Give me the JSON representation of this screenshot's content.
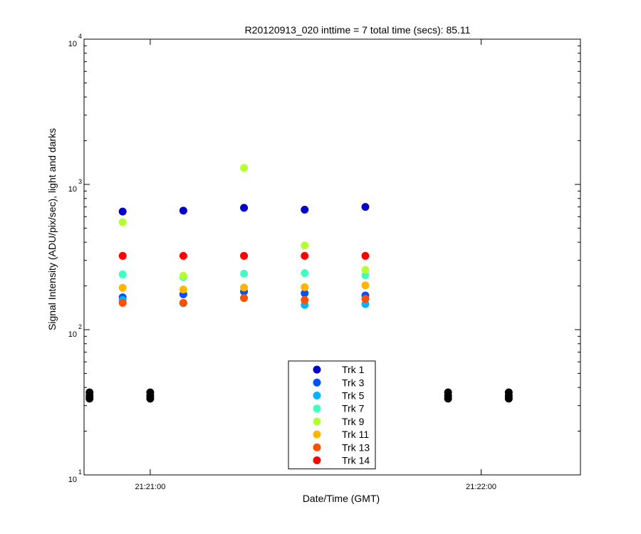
{
  "chart_data": {
    "type": "scatter",
    "title": "R20120913_020 inttime = 7 total time (secs): 85.11",
    "xlabel": "Date/Time (GMT)",
    "ylabel": "Signal Intensity (ADU/pix/sec), light and darks",
    "y_scale": "log",
    "ylim": [
      10,
      10000
    ],
    "y_ticks": [
      {
        "base": "10",
        "exp": "1",
        "value": 10
      },
      {
        "base": "10",
        "exp": "2",
        "value": 100
      },
      {
        "base": "10",
        "exp": "3",
        "value": 1000
      },
      {
        "base": "10",
        "exp": "4",
        "value": 10000
      }
    ],
    "xlim": [
      "21:20:48",
      "21:22:18"
    ],
    "x_ticks": [
      {
        "label": "21:21:00",
        "time": "21:21:00"
      },
      {
        "label": "21:22:00",
        "time": "21:22:00"
      }
    ],
    "legend_position": "bottom-center",
    "series": [
      {
        "name": "Trk 1",
        "color": "#0000c8",
        "x": [
          "21:20:55",
          "21:21:06",
          "21:21:17",
          "21:21:28",
          "21:21:39"
        ],
        "y": [
          650,
          660,
          690,
          670,
          700
        ]
      },
      {
        "name": "Trk 3",
        "color": "#0050ff",
        "x": [
          "21:20:55",
          "21:21:06",
          "21:21:17",
          "21:21:28",
          "21:21:39"
        ],
        "y": [
          167,
          175,
          183,
          178,
          172
        ]
      },
      {
        "name": "Trk 5",
        "color": "#00b4ff",
        "x": [
          "21:20:55",
          "21:21:06",
          "21:21:17",
          "21:21:28",
          "21:21:39"
        ],
        "y": [
          160,
          152,
          165,
          148,
          150
        ]
      },
      {
        "name": "Trk 7",
        "color": "#40ffc0",
        "x": [
          "21:20:55",
          "21:21:06",
          "21:21:17",
          "21:21:28",
          "21:21:39"
        ],
        "y": [
          240,
          230,
          243,
          245,
          237
        ]
      },
      {
        "name": "Trk 9",
        "color": "#b4ff32",
        "x": [
          "21:20:55",
          "21:21:06",
          "21:21:17",
          "21:21:28",
          "21:21:39"
        ],
        "y": [
          550,
          235,
          1300,
          380,
          258
        ]
      },
      {
        "name": "Trk 11",
        "color": "#ffb400",
        "x": [
          "21:20:55",
          "21:21:06",
          "21:21:17",
          "21:21:28",
          "21:21:39"
        ],
        "y": [
          194,
          189,
          195,
          196,
          202
        ]
      },
      {
        "name": "Trk 13",
        "color": "#ff5000",
        "x": [
          "21:20:55",
          "21:21:06",
          "21:21:17",
          "21:21:28",
          "21:21:39"
        ],
        "y": [
          153,
          153,
          165,
          160,
          163
        ]
      },
      {
        "name": "Trk 14",
        "color": "#ff0000",
        "x": [
          "21:20:55",
          "21:21:06",
          "21:21:17",
          "21:21:28",
          "21:21:39"
        ],
        "y": [
          322,
          322,
          322,
          322,
          322
        ]
      },
      {
        "name": "",
        "color": "#000000",
        "x": [
          "21:20:49",
          "21:21:00",
          "21:21:54",
          "21:22:05"
        ],
        "y": [
          35,
          35,
          35,
          35
        ]
      },
      {
        "name": "",
        "color": "#000000",
        "x": [
          "21:20:49",
          "21:21:00",
          "21:21:54",
          "21:22:05"
        ],
        "y": [
          37,
          37,
          37,
          37
        ]
      },
      {
        "name": "",
        "color": "#000000",
        "x": [
          "21:20:49",
          "21:21:00",
          "21:21:54",
          "21:22:05"
        ],
        "y": [
          33.5,
          33.5,
          33.5,
          33.5
        ]
      }
    ]
  }
}
